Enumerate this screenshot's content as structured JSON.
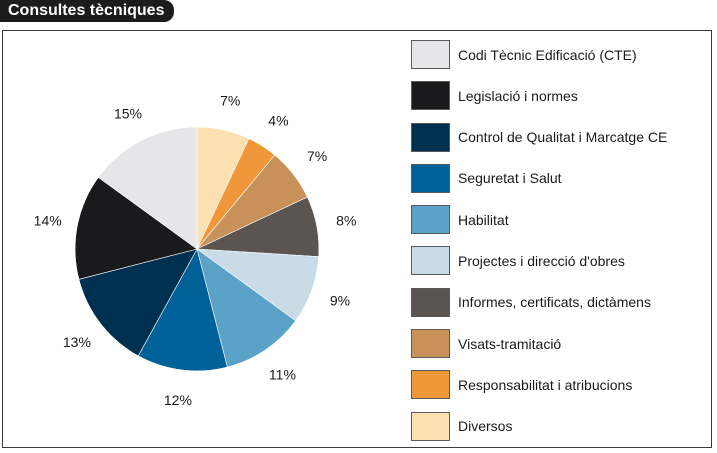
{
  "title": "Consultes tècniques",
  "chart_data": {
    "type": "pie",
    "title": "Consultes tècniques",
    "slices": [
      {
        "label": "Codi Tècnic Edificació (CTE)",
        "value": 15,
        "value_label": "15%",
        "color": "#e6e6e8"
      },
      {
        "label": "Legislació i normes",
        "value": 14,
        "value_label": "14%",
        "color": "#1a1a1c"
      },
      {
        "label": "Control de Qualitat i Marcatge CE",
        "value": 13,
        "value_label": "13%",
        "color": "#00304f"
      },
      {
        "label": "Seguretat i Salut",
        "value": 12,
        "value_label": "12%",
        "color": "#006199"
      },
      {
        "label": "Habilitat",
        "value": 11,
        "value_label": "11%",
        "color": "#5aa2c8"
      },
      {
        "label": "Projectes i direcció d'obres",
        "value": 9,
        "value_label": "9%",
        "color": "#c9dbe6"
      },
      {
        "label": "Informes, certificats, dictàmens",
        "value": 8,
        "value_label": "8%",
        "color": "#5b5450"
      },
      {
        "label": "Visats-tramitació",
        "value": 7,
        "value_label": "7%",
        "color": "#c8915a"
      },
      {
        "label": "Responsabilitat i atribucions",
        "value": 4,
        "value_label": "4%",
        "color": "#f0973a"
      },
      {
        "label": "Diversos",
        "value": 7,
        "value_label": "7%",
        "color": "#fde0b2"
      }
    ],
    "legend_position": "right",
    "start": "top",
    "direction": "clockwise"
  }
}
